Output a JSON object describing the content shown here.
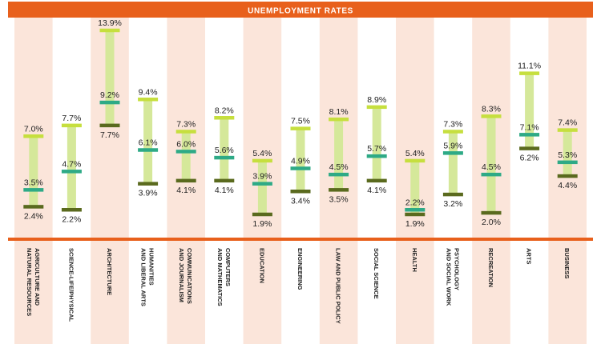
{
  "chart_data": {
    "type": "range",
    "title": "UNEMPLOYMENT RATES",
    "xlabel": "",
    "ylabel": "",
    "value_suffix": "%",
    "ylim": [
      0,
      15
    ],
    "legend": "none",
    "grid": false,
    "categories": [
      [
        "AGRICULTURE AND",
        "NATURAL RESOURCES"
      ],
      [
        "SCIENCE-LIFE/PHYSICAL"
      ],
      [
        "ARCHITECTURE"
      ],
      [
        "HUMANITIES",
        "AND LIBERAL ARTS"
      ],
      [
        "COMMUNICATIONS",
        "AND JOURNALISM"
      ],
      [
        "COMPUTERS",
        "AND MATHEMATICS"
      ],
      [
        "EDUCATION"
      ],
      [
        "ENGINEERING"
      ],
      [
        "LAW AND PUBLIC POLICY"
      ],
      [
        "SOCIAL SCIENCE"
      ],
      [
        "HEALTH"
      ],
      [
        "PSYCHOLOGY",
        "AND SOCIAL WORK"
      ],
      [
        "RECREATION"
      ],
      [
        "ARTS"
      ],
      [
        "BUSINESS"
      ]
    ],
    "series": [
      {
        "values": [
          7.0,
          7.7,
          13.9,
          9.4,
          7.3,
          8.2,
          5.4,
          7.5,
          8.1,
          8.9,
          5.4,
          7.3,
          8.3,
          11.1,
          7.4
        ]
      },
      {
        "values": [
          3.5,
          4.7,
          9.2,
          6.1,
          6.0,
          5.6,
          3.9,
          4.9,
          4.5,
          5.7,
          2.2,
          5.9,
          4.5,
          7.1,
          5.3
        ]
      },
      {
        "values": [
          2.4,
          2.2,
          7.7,
          3.9,
          4.1,
          4.1,
          1.9,
          3.4,
          3.5,
          4.1,
          1.9,
          3.2,
          2.0,
          6.2,
          4.4
        ]
      }
    ],
    "colors": {
      "banner": "#e8601c",
      "band_alt": "#fbe5da",
      "range_fill": "#d5e89a",
      "high_cap": "#c6df3e",
      "mid_mark": "#2eaa86",
      "low_cap": "#5a6a1e",
      "text": "#222222"
    }
  }
}
